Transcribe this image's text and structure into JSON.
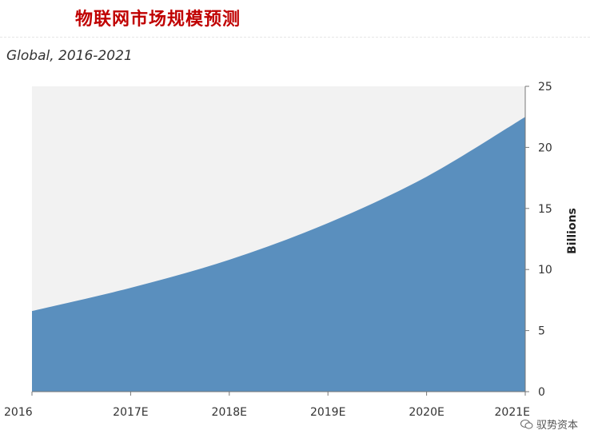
{
  "header": {
    "title": "物联网市场规模预测",
    "subtitle": "Global, 2016-2021"
  },
  "watermark": {
    "text": "驭势资本",
    "icon": "wechat-icon"
  },
  "colors": {
    "title": "#c00000",
    "area": "#5a8fbe",
    "plot_background": "#f2f2f2"
  },
  "chart_data": {
    "type": "area",
    "title": "物联网市场规模预测",
    "subtitle": "Global, 2016-2021",
    "categories": [
      "2016",
      "2017E",
      "2018E",
      "2019E",
      "2020E",
      "2021E"
    ],
    "series": [
      {
        "values": [
          6.6,
          8.5,
          10.8,
          13.8,
          17.6,
          22.5
        ]
      }
    ],
    "ylabel": "Billions",
    "ylim": [
      0,
      25
    ],
    "yticks": [
      0,
      5,
      10,
      15,
      20,
      25
    ],
    "yaxis_side": "right",
    "grid": false,
    "legend": "none"
  }
}
